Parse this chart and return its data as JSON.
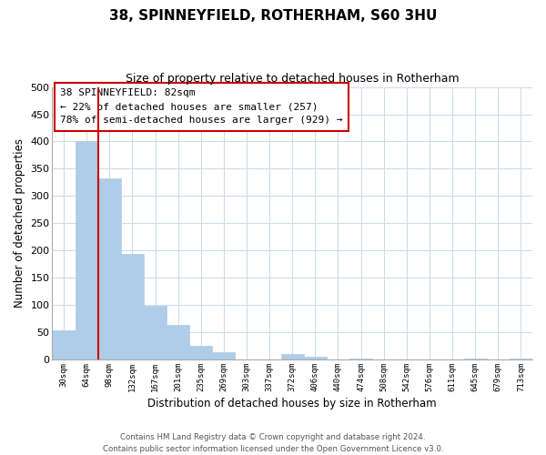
{
  "title": "38, SPINNEYFIELD, ROTHERHAM, S60 3HU",
  "subtitle": "Size of property relative to detached houses in Rotherham",
  "xlabel": "Distribution of detached houses by size in Rotherham",
  "ylabel": "Number of detached properties",
  "bar_labels": [
    "30sqm",
    "64sqm",
    "98sqm",
    "132sqm",
    "167sqm",
    "201sqm",
    "235sqm",
    "269sqm",
    "303sqm",
    "337sqm",
    "372sqm",
    "406sqm",
    "440sqm",
    "474sqm",
    "508sqm",
    "542sqm",
    "576sqm",
    "611sqm",
    "645sqm",
    "679sqm",
    "713sqm"
  ],
  "bar_values": [
    53,
    401,
    333,
    193,
    99,
    63,
    25,
    14,
    0,
    0,
    10,
    5,
    0,
    2,
    0,
    0,
    0,
    0,
    1,
    0,
    1
  ],
  "bar_color": "#aecde8",
  "bar_edge_color": "#aecde8",
  "vline_x": 2,
  "vline_color": "#cc0000",
  "ylim": [
    0,
    500
  ],
  "yticks": [
    0,
    50,
    100,
    150,
    200,
    250,
    300,
    350,
    400,
    450,
    500
  ],
  "annotation_title": "38 SPINNEYFIELD: 82sqm",
  "annotation_line1": "← 22% of detached houses are smaller (257)",
  "annotation_line2": "78% of semi-detached houses are larger (929) →",
  "footer1": "Contains HM Land Registry data © Crown copyright and database right 2024.",
  "footer2": "Contains public sector information licensed under the Open Government Licence v3.0.",
  "background_color": "#ffffff",
  "grid_color": "#ccd9e8",
  "annotation_box_color": "#ffffff",
  "annotation_box_edge": "#cc0000",
  "fig_width": 6.0,
  "fig_height": 5.0,
  "fig_dpi": 100
}
